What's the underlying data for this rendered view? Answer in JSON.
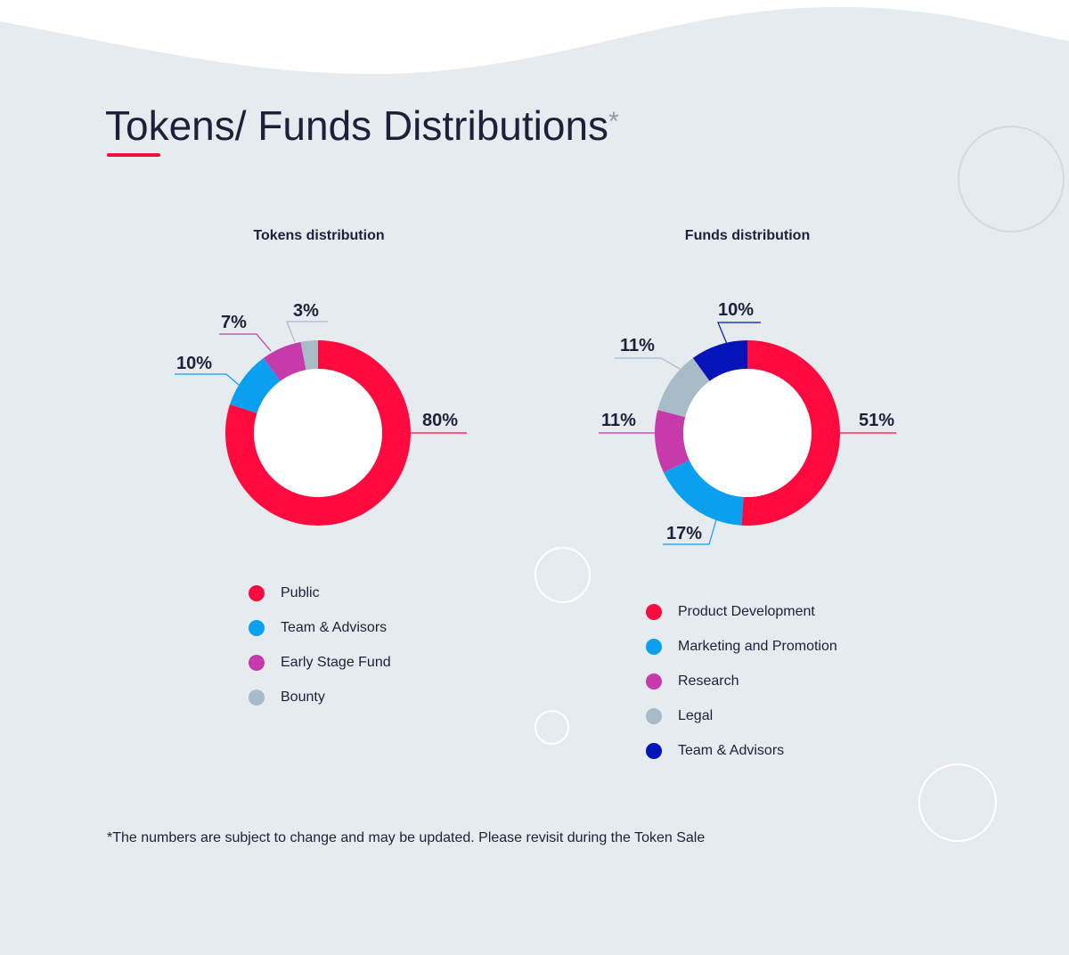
{
  "page": {
    "title": "Tokens/ Funds Distributions",
    "title_mark": "*",
    "footnote": "*The numbers are subject to change and may be updated. Please revisit during the Token Sale"
  },
  "chart_data": [
    {
      "type": "pie",
      "title": "Tokens distribution",
      "categories": [
        "Public",
        "Team & Advisors",
        "Early Stage Fund",
        "Bounty"
      ],
      "values": [
        80,
        10,
        7,
        3
      ],
      "labels": [
        "80%",
        "10%",
        "7%",
        "3%"
      ],
      "colors": [
        "#ff0a3f",
        "#0aa0ef",
        "#c63aac",
        "#a7bcc6"
      ],
      "legend_position": "bottom"
    },
    {
      "type": "pie",
      "title": "Funds distribution",
      "categories": [
        "Product Development",
        "Marketing and Promotion",
        "Research",
        "Legal",
        "Team & Advisors"
      ],
      "values": [
        51,
        17,
        11,
        11,
        10
      ],
      "labels": [
        "51%",
        "17%",
        "11%",
        "11%",
        "10%"
      ],
      "colors": [
        "#ff0a3f",
        "#0aa0ef",
        "#c63aac",
        "#a7bcc6",
        "#0414b8"
      ],
      "legend_position": "bottom"
    }
  ],
  "colors": {
    "background": "#e6ebef",
    "accent": "#f20d3f"
  }
}
